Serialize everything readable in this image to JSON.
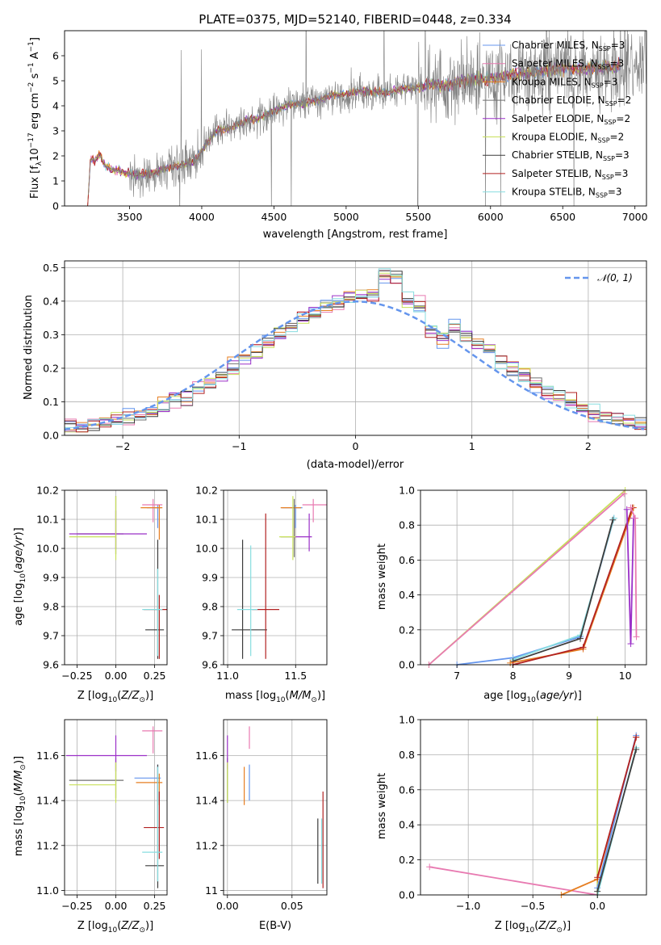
{
  "figure": {
    "title": "PLATE=0375, MJD=52140, FIBERID=0448, z=0.334"
  },
  "colors": {
    "chabrier_miles": "#6495ED",
    "salpeter_miles": "#E87AB1",
    "kroupa_miles": "#E67E22",
    "chabrier_elodie": "#707070",
    "salpeter_elodie": "#9B30C8",
    "kroupa_elodie": "#C8E05A",
    "chabrier_stelib": "#3C3C3C",
    "salpeter_stelib": "#B22222",
    "kroupa_stelib": "#87DDE0",
    "grid": "#b0b0b0"
  },
  "chart_data": [
    {
      "id": "spectrum",
      "type": "line",
      "xlabel": "wavelength [Angstrom, rest frame]",
      "ylabel": "Flux [f_λ 10^-17 erg cm^-2 s^-1 A^-1]",
      "xlim": [
        3050,
        7080
      ],
      "ylim": [
        0,
        7
      ],
      "xticks": [
        3500,
        4000,
        4500,
        5000,
        5500,
        6000,
        6500,
        7000
      ],
      "yticks": [
        0,
        1,
        2,
        3,
        4,
        5,
        6
      ],
      "grid": false,
      "legend_position": "top-right",
      "legend": [
        "Chabrier MILES, N_SSP=3",
        "Salpeter MILES, N_SSP=3",
        "Kroupa MILES, N_SSP=3",
        "Chabrier ELODIE, N_SSP=2",
        "Salpeter ELODIE, N_SSP=2",
        "Kroupa ELODIE, N_SSP=2",
        "Chabrier STELIB, N_SSP=3",
        "Salpeter STELIB, N_SSP=3",
        "Kroupa STELIB, N_SSP=3"
      ],
      "continuum_x": [
        3210,
        3230,
        3260,
        3290,
        3330,
        3380,
        3430,
        3480,
        3500,
        3550,
        3650,
        3750,
        3850,
        3950,
        4000,
        4100,
        4200,
        4300,
        4400,
        4500,
        4600,
        4700,
        4800,
        4900,
        5000,
        5100,
        5200,
        5300,
        5400,
        5500,
        5600,
        5700,
        5800,
        5900,
        6000,
        6100,
        6200,
        6300,
        6400,
        6500,
        6600,
        6700,
        6800,
        6900
      ],
      "continuum_y": [
        0.0,
        1.9,
        1.8,
        2.1,
        1.6,
        1.45,
        1.4,
        1.3,
        1.3,
        1.25,
        1.3,
        1.5,
        1.6,
        1.8,
        2.2,
        3.0,
        3.1,
        3.4,
        3.5,
        3.8,
        4.05,
        4.1,
        4.2,
        4.45,
        4.45,
        4.6,
        4.55,
        4.55,
        4.7,
        4.7,
        4.9,
        4.8,
        5.0,
        5.05,
        5.1,
        5.2,
        5.3,
        5.3,
        5.4,
        5.5,
        5.45,
        5.5,
        5.5,
        5.6
      ]
    },
    {
      "id": "residuals",
      "type": "step",
      "xlabel": "(data-model)/error",
      "ylabel": "Normed distribution",
      "xlim": [
        -2.5,
        2.5
      ],
      "ylim": [
        0,
        0.52
      ],
      "xticks": [
        -2,
        -1,
        0,
        1,
        2
      ],
      "yticks": [
        0.0,
        0.1,
        0.2,
        0.3,
        0.4,
        0.5
      ],
      "grid": true,
      "legend_position": "top-right",
      "legend": [
        "N(0,1)"
      ],
      "normal": {
        "mean": 0,
        "sigma": 1
      }
    },
    {
      "id": "age_vs_Z",
      "type": "scatter",
      "xlabel": "Z [log10(Z/Z⊙)]",
      "ylabel": "age [log10(age/yr)]",
      "xlim": [
        -0.33,
        0.33
      ],
      "ylim": [
        9.6,
        10.2
      ],
      "xticks": [
        -0.25,
        0.0,
        0.25
      ],
      "yticks": [
        9.6,
        9.7,
        9.8,
        9.9,
        10.0,
        10.1,
        10.2
      ],
      "grid": true,
      "points": [
        {
          "model": "chabrier_miles",
          "x": 0.27,
          "y": 10.14,
          "xerr": [
            0.07,
            0.02
          ],
          "yerr": [
            0.07,
            0.01
          ]
        },
        {
          "model": "salpeter_miles",
          "x": 0.24,
          "y": 10.15,
          "xerr": [
            0.07,
            0.06
          ],
          "yerr": [
            0.06,
            0.02
          ]
        },
        {
          "model": "kroupa_miles",
          "x": 0.28,
          "y": 10.14,
          "xerr": [
            0.12,
            0.02
          ],
          "yerr": [
            0.11,
            0.01
          ]
        },
        {
          "model": "chabrier_elodie",
          "x": 0.0,
          "y": 10.05,
          "xerr": [
            0.25,
            0.05
          ],
          "yerr": [
            0.07,
            0.13
          ]
        },
        {
          "model": "salpeter_elodie",
          "x": 0.0,
          "y": 10.05,
          "xerr": [
            0.3,
            0.2
          ],
          "yerr": [
            0.05,
            0.08
          ]
        },
        {
          "model": "kroupa_elodie",
          "x": 0.0,
          "y": 10.04,
          "xerr": [
            0.3,
            0.0
          ],
          "yerr": [
            0.08,
            0.14
          ]
        },
        {
          "model": "chabrier_stelib",
          "x": 0.27,
          "y": 9.72,
          "xerr": [
            0.08,
            0.04
          ],
          "yerr": [
            0.1,
            0.31
          ]
        },
        {
          "model": "salpeter_stelib",
          "x": 0.28,
          "y": 9.79,
          "xerr": [
            0.1,
            0.05
          ],
          "yerr": [
            0.17,
            0.05
          ]
        },
        {
          "model": "kroupa_stelib",
          "x": 0.27,
          "y": 9.79,
          "xerr": [
            0.1,
            0.03
          ],
          "yerr": [
            0.16,
            0.14
          ]
        }
      ]
    },
    {
      "id": "age_vs_mass",
      "type": "scatter",
      "xlabel": "mass [log10(M/M⊙)]",
      "ylabel": "",
      "xlim": [
        10.97,
        11.73
      ],
      "ylim": [
        9.6,
        10.2
      ],
      "xticks": [
        11.0,
        11.5
      ],
      "yticks": [
        9.6,
        9.7,
        9.8,
        9.9,
        10.0,
        10.1,
        10.2
      ],
      "grid": true,
      "points": [
        {
          "model": "chabrier_miles",
          "x": 11.5,
          "y": 10.14,
          "xerr": [
            0.1,
            0.05
          ],
          "yerr": [
            0.07,
            0.01
          ]
        },
        {
          "model": "salpeter_miles",
          "x": 11.63,
          "y": 10.15,
          "xerr": [
            0.08,
            0.1
          ],
          "yerr": [
            0.06,
            0.02
          ]
        },
        {
          "model": "kroupa_miles",
          "x": 11.49,
          "y": 10.14,
          "xerr": [
            0.1,
            0.05
          ],
          "yerr": [
            0.11,
            0.01
          ]
        },
        {
          "model": "chabrier_elodie",
          "x": 11.49,
          "y": 10.04,
          "xerr": [
            0.1,
            0.01
          ],
          "yerr": [
            0.07,
            0.13
          ]
        },
        {
          "model": "salpeter_elodie",
          "x": 11.6,
          "y": 10.04,
          "xerr": [
            0.12,
            0.02
          ],
          "yerr": [
            0.05,
            0.08
          ]
        },
        {
          "model": "kroupa_elodie",
          "x": 11.48,
          "y": 10.04,
          "xerr": [
            0.1,
            0.02
          ],
          "yerr": [
            0.08,
            0.14
          ]
        },
        {
          "model": "chabrier_stelib",
          "x": 11.11,
          "y": 9.72,
          "xerr": [
            0.08,
            0.18
          ],
          "yerr": [
            0.1,
            0.31
          ]
        },
        {
          "model": "salpeter_stelib",
          "x": 11.28,
          "y": 9.79,
          "xerr": [
            0.1,
            0.1
          ],
          "yerr": [
            0.17,
            0.33
          ]
        },
        {
          "model": "kroupa_stelib",
          "x": 11.17,
          "y": 9.79,
          "xerr": [
            0.1,
            0.05
          ],
          "yerr": [
            0.16,
            0.22
          ]
        }
      ]
    },
    {
      "id": "weight_vs_age",
      "type": "line",
      "xlabel": "age [log10(age/yr)]",
      "ylabel": "mass weight",
      "xlim": [
        6.35,
        10.38
      ],
      "ylim": [
        0,
        1
      ],
      "xticks": [
        7,
        8,
        9,
        10
      ],
      "yticks": [
        0.0,
        0.2,
        0.4,
        0.6,
        0.8,
        1.0
      ],
      "grid": true,
      "series": [
        {
          "model": "kroupa_elodie",
          "x": [
            6.5,
            10.0
          ],
          "y": [
            0.0,
            1.0
          ]
        },
        {
          "model": "salpeter_miles",
          "x": [
            6.5,
            9.98
          ],
          "y": [
            0.0,
            0.98
          ]
        },
        {
          "model": "chabrier_miles",
          "x": [
            7.0,
            8.0,
            9.2,
            9.8
          ],
          "y": [
            0.0,
            0.04,
            0.16,
            0.84
          ]
        },
        {
          "model": "kroupa_stelib",
          "x": [
            8.0,
            9.2,
            9.8
          ],
          "y": [
            0.03,
            0.17,
            0.84
          ]
        },
        {
          "model": "chabrier_stelib",
          "x": [
            8.0,
            9.2,
            9.78
          ],
          "y": [
            0.02,
            0.15,
            0.83
          ]
        },
        {
          "model": "kroupa_miles",
          "x": [
            7.95,
            9.25,
            10.15
          ],
          "y": [
            0.01,
            0.09,
            0.9
          ]
        },
        {
          "model": "salpeter_stelib",
          "x": [
            8.0,
            9.25,
            10.13
          ],
          "y": [
            0.0,
            0.1,
            0.9
          ]
        },
        {
          "model": "salpeter_elodie",
          "x": [
            10.03,
            10.1,
            10.15
          ],
          "y": [
            0.89,
            0.12,
            0.84
          ]
        },
        {
          "model": "salpeter_miles",
          "x": [
            10.1,
            10.18,
            10.2
          ],
          "y": [
            0.9,
            0.84,
            0.16
          ]
        }
      ]
    },
    {
      "id": "mass_vs_Z",
      "type": "scatter",
      "xlabel": "Z [log10(Z/Z⊙)]",
      "ylabel": "mass [log10(M/M⊙)]",
      "xlim": [
        -0.33,
        0.33
      ],
      "ylim": [
        10.98,
        11.76
      ],
      "xticks": [
        -0.25,
        0.0,
        0.25
      ],
      "yticks": [
        11.0,
        11.2,
        11.4,
        11.6
      ],
      "grid": true,
      "points": [
        {
          "model": "chabrier_miles",
          "x": 0.27,
          "y": 11.5,
          "xerr": [
            0.15,
            0.02
          ],
          "yerr": [
            0.1,
            0.06
          ]
        },
        {
          "model": "salpeter_miles",
          "x": 0.24,
          "y": 11.71,
          "xerr": [
            0.07,
            0.06
          ],
          "yerr": [
            0.1,
            0.02
          ]
        },
        {
          "model": "kroupa_miles",
          "x": 0.28,
          "y": 11.48,
          "xerr": [
            0.15,
            0.02
          ],
          "yerr": [
            0.1,
            0.04
          ]
        },
        {
          "model": "chabrier_elodie",
          "x": 0.0,
          "y": 11.49,
          "xerr": [
            0.3,
            0.05
          ],
          "yerr": [
            0.08,
            0.1
          ]
        },
        {
          "model": "salpeter_elodie",
          "x": 0.0,
          "y": 11.6,
          "xerr": [
            0.32,
            0.2
          ],
          "yerr": [
            0.07,
            0.09
          ]
        },
        {
          "model": "kroupa_elodie",
          "x": 0.0,
          "y": 11.47,
          "xerr": [
            0.3,
            0.0
          ],
          "yerr": [
            0.08,
            0.1
          ]
        },
        {
          "model": "chabrier_stelib",
          "x": 0.27,
          "y": 11.11,
          "xerr": [
            0.08,
            0.04
          ],
          "yerr": [
            0.1,
            0.45
          ]
        },
        {
          "model": "salpeter_stelib",
          "x": 0.28,
          "y": 11.28,
          "xerr": [
            0.1,
            0.03
          ],
          "yerr": [
            0.14,
            0.16
          ]
        },
        {
          "model": "kroupa_stelib",
          "x": 0.27,
          "y": 11.17,
          "xerr": [
            0.1,
            0.03
          ],
          "yerr": [
            0.13,
            0.38
          ]
        }
      ]
    },
    {
      "id": "mass_vs_ebv",
      "type": "scatter",
      "xlabel": "E(B-V)",
      "ylabel": "",
      "xlim": [
        -0.003,
        0.077
      ],
      "ylim": [
        10.98,
        11.76
      ],
      "xticks": [
        0.0,
        0.05
      ],
      "yticks": [
        11.0,
        11.2,
        11.4,
        11.6
      ],
      "grid": true,
      "points": [
        {
          "model": "chabrier_miles",
          "x": 0.017,
          "y": 11.5,
          "yerr": [
            0.1,
            0.06
          ]
        },
        {
          "model": "salpeter_miles",
          "x": 0.017,
          "y": 11.71,
          "yerr": [
            0.08,
            0.02
          ]
        },
        {
          "model": "kroupa_miles",
          "x": 0.013,
          "y": 11.47,
          "yerr": [
            0.09,
            0.08
          ]
        },
        {
          "model": "chabrier_elodie",
          "x": 0.0,
          "y": 11.49,
          "yerr": [
            0.1,
            0.1
          ]
        },
        {
          "model": "salpeter_elodie",
          "x": 0.0,
          "y": 11.6,
          "yerr": [
            0.06,
            0.09
          ]
        },
        {
          "model": "kroupa_elodie",
          "x": 0.0,
          "y": 11.47,
          "yerr": [
            0.08,
            0.1
          ]
        },
        {
          "model": "chabrier_stelib",
          "x": 0.07,
          "y": 11.11,
          "yerr": [
            0.08,
            0.21
          ]
        },
        {
          "model": "salpeter_stelib",
          "x": 0.074,
          "y": 11.28,
          "yerr": [
            0.27,
            0.16
          ]
        },
        {
          "model": "kroupa_stelib",
          "x": 0.073,
          "y": 11.17,
          "yerr": [
            0.14,
            0.15
          ]
        }
      ]
    },
    {
      "id": "weight_vs_Z",
      "type": "line",
      "xlabel": "Z [log10(Z/Z⊙)]",
      "ylabel": "mass weight",
      "xlim": [
        -1.37,
        0.38
      ],
      "ylim": [
        0,
        1
      ],
      "xticks": [
        -1.0,
        -0.5,
        0.0
      ],
      "yticks": [
        0.0,
        0.2,
        0.4,
        0.6,
        0.8,
        1.0
      ],
      "grid": true,
      "series": [
        {
          "model": "salpeter_miles",
          "x": [
            -1.3,
            0.0
          ],
          "y": [
            0.16,
            0.0
          ]
        },
        {
          "model": "kroupa_elodie",
          "x": [
            0.0,
            0.0
          ],
          "y": [
            0.0,
            1.0
          ]
        },
        {
          "model": "kroupa_miles",
          "x": [
            -0.28,
            0.0,
            0.3
          ],
          "y": [
            0.0,
            0.09,
            0.9
          ]
        },
        {
          "model": "chabrier_miles",
          "x": [
            0.0,
            0.3
          ],
          "y": [
            0.04,
            0.91
          ]
        },
        {
          "model": "kroupa_stelib",
          "x": [
            0.0,
            0.3
          ],
          "y": [
            0.0,
            0.84
          ]
        },
        {
          "model": "chabrier_stelib",
          "x": [
            0.0,
            0.3
          ],
          "y": [
            0.02,
            0.83
          ]
        },
        {
          "model": "salpeter_stelib",
          "x": [
            0.0,
            0.3
          ],
          "y": [
            0.1,
            0.9
          ]
        }
      ]
    }
  ]
}
